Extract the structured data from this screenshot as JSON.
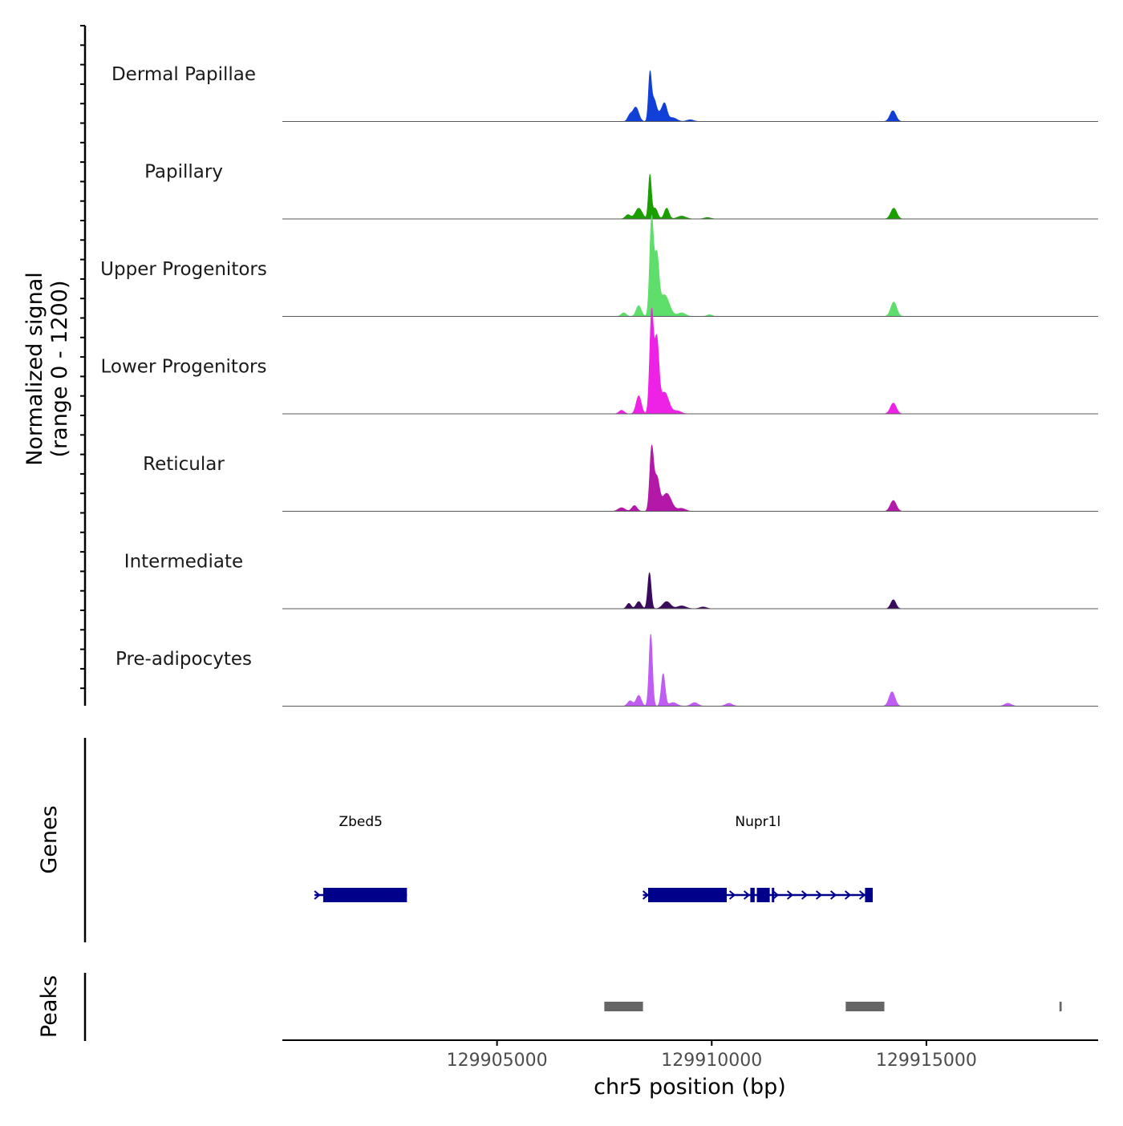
{
  "chart_data": {
    "type": "area",
    "title": "",
    "ylabel_line1": "Normalized signal",
    "ylabel_line2": "(range 0 - 1200)",
    "y_range": [
      0,
      1200
    ],
    "xlabel": "chr5 position (bp)",
    "xlim": [
      129900000,
      129919000
    ],
    "x_ticks": [
      129905000,
      129910000,
      129915000
    ],
    "x_tick_labels": [
      "129905000",
      "129910000",
      "129915000"
    ],
    "tracks": [
      {
        "name": "Dermal Papillae",
        "color": "#1040D8",
        "peaks": [
          {
            "pos": 129908090,
            "h": 16,
            "w": 50
          },
          {
            "pos": 129908230,
            "h": 40,
            "w": 70
          },
          {
            "pos": 129908560,
            "h": 120,
            "w": 35
          },
          {
            "pos": 129908650,
            "h": 60,
            "w": 60
          },
          {
            "pos": 129908850,
            "h": 30,
            "w": 90
          },
          {
            "pos": 129908910,
            "h": 26,
            "w": 50
          },
          {
            "pos": 129909100,
            "h": 10,
            "w": 90
          },
          {
            "pos": 129909500,
            "h": 5,
            "w": 80
          },
          {
            "pos": 129914220,
            "h": 30,
            "w": 70
          }
        ]
      },
      {
        "name": "Papillary",
        "color": "#1A9E00",
        "peaks": [
          {
            "pos": 129908050,
            "h": 12,
            "w": 60
          },
          {
            "pos": 129908300,
            "h": 30,
            "w": 80
          },
          {
            "pos": 129908560,
            "h": 120,
            "w": 35
          },
          {
            "pos": 129908680,
            "h": 30,
            "w": 60
          },
          {
            "pos": 129908950,
            "h": 30,
            "w": 55
          },
          {
            "pos": 129909300,
            "h": 8,
            "w": 100
          },
          {
            "pos": 129909900,
            "h": 4,
            "w": 80
          },
          {
            "pos": 129914240,
            "h": 30,
            "w": 70
          }
        ]
      },
      {
        "name": "Upper Progenitors",
        "color": "#5EDE6B",
        "peaks": [
          {
            "pos": 129907950,
            "h": 10,
            "w": 60
          },
          {
            "pos": 129908300,
            "h": 30,
            "w": 60
          },
          {
            "pos": 129908600,
            "h": 270,
            "w": 45
          },
          {
            "pos": 129908720,
            "h": 160,
            "w": 50
          },
          {
            "pos": 129908900,
            "h": 60,
            "w": 110
          },
          {
            "pos": 129909300,
            "h": 10,
            "w": 90
          },
          {
            "pos": 129909950,
            "h": 5,
            "w": 60
          },
          {
            "pos": 129914240,
            "h": 40,
            "w": 70
          }
        ]
      },
      {
        "name": "Lower Progenitors",
        "color": "#EE22E6",
        "peaks": [
          {
            "pos": 129907900,
            "h": 10,
            "w": 60
          },
          {
            "pos": 129908300,
            "h": 50,
            "w": 60
          },
          {
            "pos": 129908600,
            "h": 280,
            "w": 45
          },
          {
            "pos": 129908720,
            "h": 200,
            "w": 50
          },
          {
            "pos": 129908900,
            "h": 60,
            "w": 100
          },
          {
            "pos": 129909200,
            "h": 8,
            "w": 90
          },
          {
            "pos": 129914230,
            "h": 30,
            "w": 70
          }
        ]
      },
      {
        "name": "Reticular",
        "color": "#B418A8",
        "peaks": [
          {
            "pos": 129907900,
            "h": 10,
            "w": 80
          },
          {
            "pos": 129908200,
            "h": 16,
            "w": 60
          },
          {
            "pos": 129908600,
            "h": 170,
            "w": 45
          },
          {
            "pos": 129908720,
            "h": 90,
            "w": 60
          },
          {
            "pos": 129908950,
            "h": 50,
            "w": 110
          },
          {
            "pos": 129909300,
            "h": 8,
            "w": 90
          },
          {
            "pos": 129914230,
            "h": 30,
            "w": 70
          }
        ]
      },
      {
        "name": "Intermediate",
        "color": "#3A0A5C",
        "peaks": [
          {
            "pos": 129908070,
            "h": 15,
            "w": 50
          },
          {
            "pos": 129908300,
            "h": 20,
            "w": 60
          },
          {
            "pos": 129908550,
            "h": 100,
            "w": 40
          },
          {
            "pos": 129908950,
            "h": 20,
            "w": 90
          },
          {
            "pos": 129909300,
            "h": 8,
            "w": 100
          },
          {
            "pos": 129909800,
            "h": 5,
            "w": 80
          },
          {
            "pos": 129914230,
            "h": 25,
            "w": 60
          }
        ]
      },
      {
        "name": "Pre-adipocytes",
        "color": "#BF5CF2",
        "peaks": [
          {
            "pos": 129908100,
            "h": 15,
            "w": 60
          },
          {
            "pos": 129908300,
            "h": 30,
            "w": 60
          },
          {
            "pos": 129908580,
            "h": 200,
            "w": 40
          },
          {
            "pos": 129908870,
            "h": 90,
            "w": 45
          },
          {
            "pos": 129909100,
            "h": 10,
            "w": 90
          },
          {
            "pos": 129909600,
            "h": 10,
            "w": 80
          },
          {
            "pos": 129910400,
            "h": 8,
            "w": 80
          },
          {
            "pos": 129914200,
            "h": 40,
            "w": 70
          },
          {
            "pos": 129916900,
            "h": 8,
            "w": 80
          }
        ]
      }
    ],
    "genes_label": "Genes",
    "gene_color": "#00008B",
    "genes": [
      {
        "name": "Zbed5",
        "start": 129900750,
        "end": 129902900,
        "strand": "+",
        "exons": [
          [
            129900950,
            129902900
          ]
        ]
      },
      {
        "name": "Nupr1l",
        "start": 129908400,
        "end": 129913750,
        "strand": "+",
        "exons": [
          [
            129908520,
            129910350
          ],
          [
            129910900,
            129911000
          ],
          [
            129911050,
            129911350
          ],
          [
            129911400,
            129911450
          ],
          [
            129913570,
            129913750
          ]
        ]
      }
    ],
    "peaks_label": "Peaks",
    "peak_color": "#666666",
    "peak_regions": [
      [
        129907500,
        129908400
      ],
      [
        129913120,
        129914020
      ],
      [
        129918100,
        129918150
      ]
    ]
  }
}
